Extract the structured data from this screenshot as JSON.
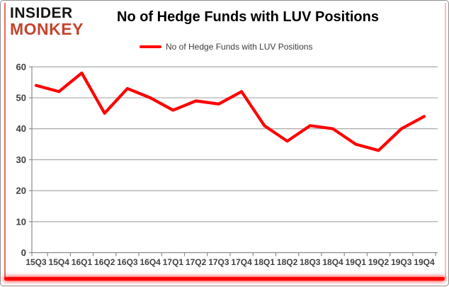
{
  "brand": {
    "line1": "INSIDER",
    "line2": "MONKEY",
    "black": "#151515",
    "red": "#c2452d"
  },
  "header": {
    "title": "No of Hedge Funds with LUV Positions"
  },
  "legend": {
    "label": "No of Hedge Funds with LUV Positions",
    "swatch_color": "#fe0000"
  },
  "chart_data": {
    "type": "line",
    "title": "No of Hedge Funds with LUV Positions",
    "categories": [
      "15Q3",
      "15Q4",
      "16Q1",
      "16Q2",
      "16Q3",
      "16Q4",
      "17Q1",
      "17Q2",
      "17Q3",
      "17Q4",
      "18Q1",
      "18Q2",
      "18Q3",
      "18Q4",
      "19Q1",
      "19Q2",
      "19Q3",
      "19Q4"
    ],
    "series": [
      {
        "name": "No of Hedge Funds with LUV Positions",
        "color": "#fe0000",
        "values": [
          54,
          52,
          58,
          45,
          53,
          50,
          46,
          49,
          48,
          52,
          41,
          36,
          41,
          40,
          35,
          33,
          40,
          44
        ]
      }
    ],
    "ylim": [
      0,
      60
    ],
    "yticks": [
      0,
      10,
      20,
      30,
      40,
      50,
      60
    ],
    "grid": true,
    "legend_position": "top",
    "gridline_color": "#9f9f9f",
    "axis_color": "#8c8c8c",
    "tick_label_color": "#404040"
  },
  "frame": {
    "border_color": "#8f8f8f",
    "accent_color": "#fe0000"
  }
}
